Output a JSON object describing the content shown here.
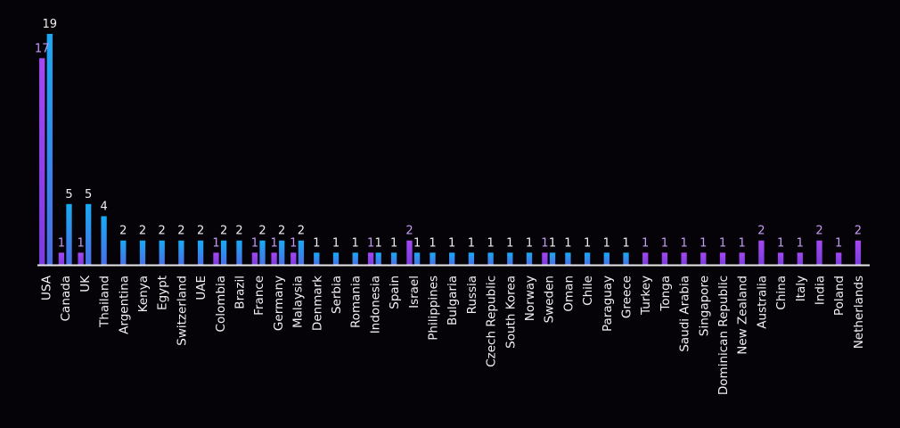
{
  "chart_data": {
    "type": "bar",
    "categories": [
      "USA",
      "Canada",
      "UK",
      "Thailand",
      "Argentina",
      "Kenya",
      "Egypt",
      "Switzerland",
      "UAE",
      "Colombia",
      "Brazil",
      "France",
      "Germany",
      "Malaysia",
      "Denmark",
      "Serbia",
      "Romania",
      "Indonesia",
      "Spain",
      "Israel",
      "Philippines",
      "Bulgaria",
      "Russia",
      "Czech Republic",
      "South Korea",
      "Norway",
      "Sweden",
      "Oman",
      "Chile",
      "Paraguay",
      "Greece",
      "Turkey",
      "Tonga",
      "Saudi Arabia",
      "Singapore",
      "Dominican Republic",
      "New Zealand",
      "Australia",
      "China",
      "Italy",
      "India",
      "Poland",
      "Netherlands"
    ],
    "series": [
      {
        "values": [
          17,
          1,
          1,
          null,
          null,
          null,
          null,
          null,
          null,
          1,
          null,
          1,
          1,
          1,
          null,
          null,
          null,
          1,
          null,
          2,
          null,
          null,
          null,
          null,
          null,
          null,
          1,
          null,
          null,
          null,
          null,
          1,
          1,
          1,
          1,
          1,
          1,
          2,
          1,
          1,
          2,
          1,
          2
        ]
      },
      {
        "values": [
          19,
          5,
          5,
          4,
          2,
          2,
          2,
          2,
          2,
          2,
          2,
          2,
          2,
          2,
          1,
          1,
          1,
          1,
          1,
          1,
          1,
          1,
          1,
          1,
          1,
          1,
          1,
          1,
          1,
          1,
          1,
          null,
          null,
          null,
          null,
          null,
          null,
          null,
          null,
          null,
          null,
          null,
          null
        ]
      }
    ],
    "ylim": [
      0,
      19
    ],
    "colors": {
      "series1_top": "#a548f2",
      "series1_bottom": "#7a3ce0",
      "series2_top": "#18aaf4",
      "series2_bottom": "#4a6ee6",
      "label1": "#c79cf7",
      "label2": "#eeeeee",
      "axis": "#e8e8e8",
      "background": "#050308"
    },
    "grid": false,
    "legend": "none"
  }
}
